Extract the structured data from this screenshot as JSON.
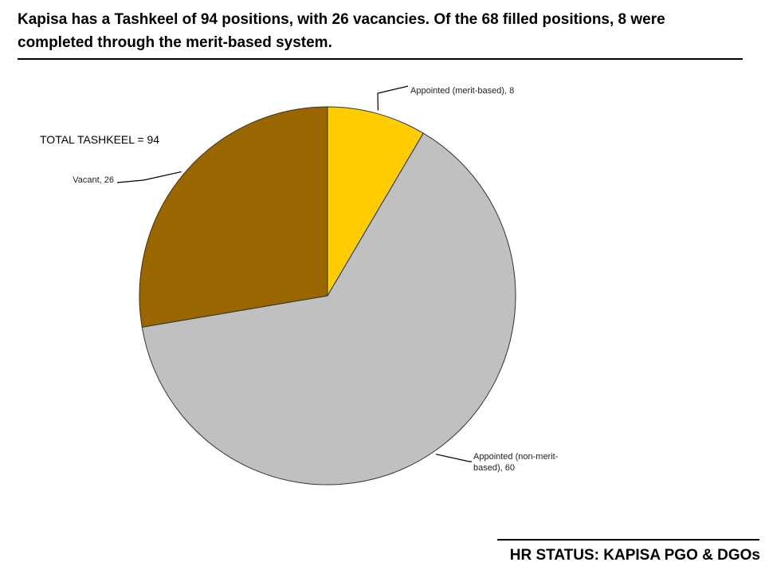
{
  "headline": "Kapisa has a Tashkeel of 94 positions, with 26 vacancies. Of the 68 filled positions, 8 were completed through the merit-based system.",
  "total_label": "TOTAL TASHKEEL = 94",
  "footer": "HR STATUS: KAPISA PGO & DGOs",
  "chart_data": {
    "type": "pie",
    "total": 94,
    "slices": [
      {
        "name": "Appointed (merit-based)",
        "value": 8,
        "color": "#FFCC00",
        "label_lines": [
          "Appointed (merit-based), 8"
        ]
      },
      {
        "name": "Appointed (non-merit-based)",
        "value": 60,
        "color": "#C0C0C0",
        "label_lines": [
          "Appointed (non-merit-",
          "based), 60"
        ]
      },
      {
        "name": "Vacant",
        "value": 26,
        "color": "#996600",
        "label_lines": [
          "Vacant, 26"
        ]
      }
    ],
    "start_angle_deg": 0,
    "direction": "clockwise",
    "labels": "outside-with-leader-lines"
  }
}
